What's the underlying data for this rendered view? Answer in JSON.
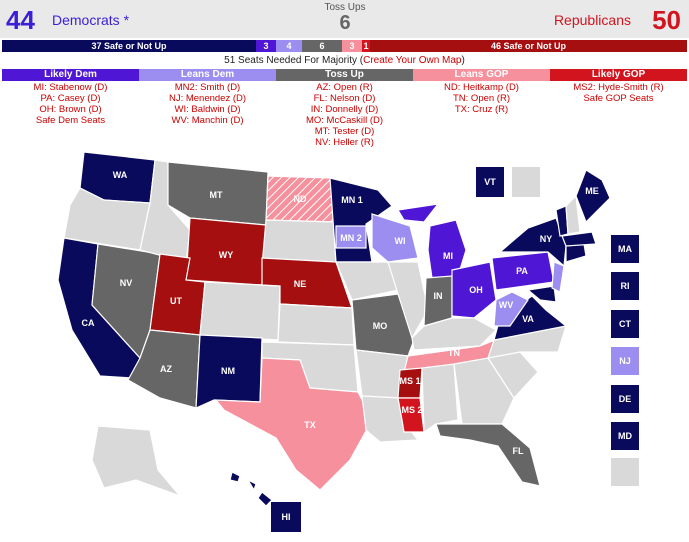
{
  "header": {
    "dem_count": "44",
    "dem_label": "Democrats *",
    "tossup_label": "Toss Ups",
    "tossup_count": "6",
    "rep_label": "Republicans",
    "rep_count": "50"
  },
  "colors": {
    "safe_dem": "#0a0a5c",
    "likely_dem": "#4f16d6",
    "leans_dem": "#9b8ef0",
    "toss_up": "#666666",
    "leans_gop": "#f5909c",
    "likely_gop": "#d1141e",
    "safe_gop": "#a50f0f",
    "not_up": "#d9d9d9"
  },
  "seat_bar": {
    "safe_dem_label": "37 Safe or Not Up",
    "likely_dem": "3",
    "leans_dem": "4",
    "toss_up": "6",
    "leans_gop": "3",
    "likely_gop": "1",
    "safe_gop_label": "46 Safe or Not Up"
  },
  "majority": {
    "text": "51 Seats Needed For Majority (",
    "link": "Create Your Own Map",
    "close": ")"
  },
  "categories": [
    {
      "title": "Likely Dem",
      "items": [
        "MI: Stabenow (D)",
        "PA: Casey (D)",
        "OH: Brown (D)",
        "Safe Dem Seats"
      ]
    },
    {
      "title": "Leans Dem",
      "items": [
        "MN2: Smith (D)",
        "NJ: Menendez (D)",
        "WI: Baldwin (D)",
        "WV: Manchin (D)"
      ]
    },
    {
      "title": "Toss Up",
      "items": [
        "AZ: Open (R)",
        "FL: Nelson (D)",
        "IN: Donnelly (D)",
        "MO: McCaskill (D)",
        "MT: Tester (D)",
        "NV: Heller (R)"
      ]
    },
    {
      "title": "Leans GOP",
      "items": [
        "ND: Heitkamp (D)",
        "TN: Open (R)",
        "TX: Cruz (R)"
      ]
    },
    {
      "title": "Likely GOP",
      "items": [
        "MS2: Hyde-Smith (R)",
        "Safe GOP Seats"
      ]
    }
  ],
  "map_labels": {
    "WA": "WA",
    "MT": "MT",
    "ND": "ND",
    "MN1": "MN 1",
    "MN2": "MN 2",
    "WI": "WI",
    "MI": "MI",
    "NY": "NY",
    "ME": "ME",
    "VT": "VT",
    "WY": "WY",
    "NE": "NE",
    "UT": "UT",
    "NV": "NV",
    "CA": "CA",
    "IN": "IN",
    "OH": "OH",
    "PA": "PA",
    "WV": "WV",
    "VA": "VA",
    "MO": "MO",
    "TN": "TN",
    "AZ": "AZ",
    "NM": "NM",
    "TX": "TX",
    "MS1": "MS 1",
    "MS2": "MS 2",
    "FL": "FL",
    "HI": "HI"
  },
  "side_boxes": [
    "MA",
    "RI",
    "CT",
    "NJ",
    "DE",
    "MD"
  ]
}
